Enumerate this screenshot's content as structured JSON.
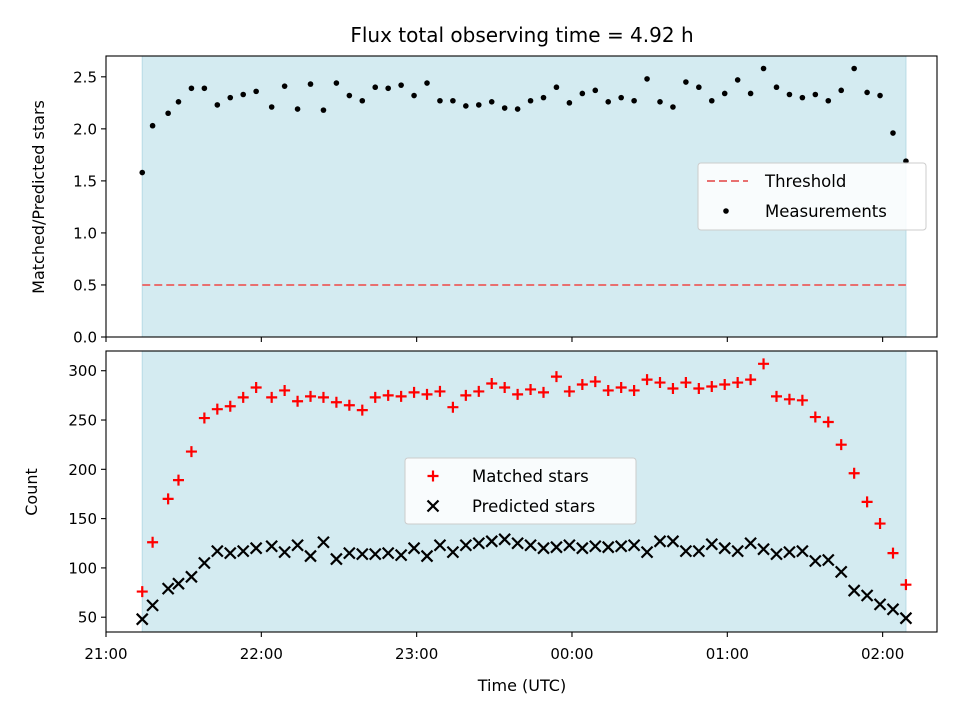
{
  "chart_data": [
    {
      "type": "scatter",
      "title": "Flux total observing time = 4.92 h",
      "xlabel": "",
      "ylabel": "Matched/Predicted stars",
      "xlim": [
        "21:00",
        "02:21"
      ],
      "ylim": [
        0,
        2.7
      ],
      "yticks": [
        "0.0",
        "0.5",
        "1.0",
        "1.5",
        "2.0",
        "2.5"
      ],
      "shaded_span": [
        "21:14",
        "02:09"
      ],
      "shade_color": "#d4ebf1",
      "threshold": {
        "name": "Threshold",
        "value": 0.5,
        "color": "#e87070"
      },
      "legend": {
        "location": "center-right",
        "entries": [
          "Threshold",
          "Measurements"
        ]
      },
      "series": [
        {
          "name": "Measurements",
          "marker": "dot",
          "color": "#000000",
          "points": [
            [
              "21:14",
              1.58
            ],
            [
              "21:18",
              2.03
            ],
            [
              "21:24",
              2.15
            ],
            [
              "21:28",
              2.26
            ],
            [
              "21:33",
              2.39
            ],
            [
              "21:38",
              2.39
            ],
            [
              "21:43",
              2.23
            ],
            [
              "21:48",
              2.3
            ],
            [
              "21:53",
              2.33
            ],
            [
              "21:58",
              2.36
            ],
            [
              "22:04",
              2.21
            ],
            [
              "22:09",
              2.41
            ],
            [
              "22:14",
              2.19
            ],
            [
              "22:19",
              2.43
            ],
            [
              "22:24",
              2.18
            ],
            [
              "22:29",
              2.44
            ],
            [
              "22:34",
              2.32
            ],
            [
              "22:39",
              2.27
            ],
            [
              "22:44",
              2.4
            ],
            [
              "22:49",
              2.39
            ],
            [
              "22:54",
              2.42
            ],
            [
              "22:59",
              2.32
            ],
            [
              "23:04",
              2.44
            ],
            [
              "23:09",
              2.27
            ],
            [
              "23:14",
              2.27
            ],
            [
              "23:19",
              2.22
            ],
            [
              "23:24",
              2.23
            ],
            [
              "23:29",
              2.26
            ],
            [
              "23:34",
              2.2
            ],
            [
              "23:39",
              2.19
            ],
            [
              "23:44",
              2.27
            ],
            [
              "23:49",
              2.3
            ],
            [
              "23:54",
              2.4
            ],
            [
              "23:59",
              2.25
            ],
            [
              "00:04",
              2.34
            ],
            [
              "00:09",
              2.37
            ],
            [
              "00:14",
              2.26
            ],
            [
              "00:19",
              2.3
            ],
            [
              "00:24",
              2.27
            ],
            [
              "00:29",
              2.48
            ],
            [
              "00:34",
              2.26
            ],
            [
              "00:39",
              2.21
            ],
            [
              "00:44",
              2.45
            ],
            [
              "00:49",
              2.4
            ],
            [
              "00:54",
              2.27
            ],
            [
              "00:59",
              2.34
            ],
            [
              "01:04",
              2.47
            ],
            [
              "01:09",
              2.34
            ],
            [
              "01:14",
              2.58
            ],
            [
              "01:19",
              2.4
            ],
            [
              "01:24",
              2.33
            ],
            [
              "01:29",
              2.3
            ],
            [
              "01:34",
              2.33
            ],
            [
              "01:39",
              2.27
            ],
            [
              "01:44",
              2.37
            ],
            [
              "01:49",
              2.58
            ],
            [
              "01:54",
              2.35
            ],
            [
              "01:59",
              2.32
            ],
            [
              "02:04",
              1.96
            ],
            [
              "02:09",
              1.69
            ]
          ]
        }
      ]
    },
    {
      "type": "scatter",
      "title": "",
      "xlabel": "Time (UTC)",
      "ylabel": "Count",
      "xlim": [
        "21:00",
        "02:21"
      ],
      "ylim": [
        35,
        320
      ],
      "yticks": [
        "50",
        "100",
        "150",
        "200",
        "250",
        "300"
      ],
      "xticks": [
        "21:00",
        "22:00",
        "23:00",
        "00:00",
        "01:00",
        "02:00"
      ],
      "shaded_span": [
        "21:14",
        "02:09"
      ],
      "shade_color": "#d4ebf1",
      "legend": {
        "location": "center",
        "entries": [
          "Matched stars",
          "Predicted stars"
        ]
      },
      "series": [
        {
          "name": "Matched stars",
          "marker": "plus",
          "color": "#ff0000",
          "points": [
            [
              "21:14",
              76
            ],
            [
              "21:18",
              126
            ],
            [
              "21:24",
              170
            ],
            [
              "21:28",
              189
            ],
            [
              "21:33",
              218
            ],
            [
              "21:38",
              252
            ],
            [
              "21:43",
              261
            ],
            [
              "21:48",
              264
            ],
            [
              "21:53",
              273
            ],
            [
              "21:58",
              283
            ],
            [
              "22:04",
              273
            ],
            [
              "22:09",
              280
            ],
            [
              "22:14",
              269
            ],
            [
              "22:19",
              274
            ],
            [
              "22:24",
              273
            ],
            [
              "22:29",
              268
            ],
            [
              "22:34",
              265
            ],
            [
              "22:39",
              260
            ],
            [
              "22:44",
              273
            ],
            [
              "22:49",
              275
            ],
            [
              "22:54",
              274
            ],
            [
              "22:59",
              278
            ],
            [
              "23:04",
              276
            ],
            [
              "23:09",
              279
            ],
            [
              "23:14",
              263
            ],
            [
              "23:19",
              275
            ],
            [
              "23:24",
              279
            ],
            [
              "23:29",
              287
            ],
            [
              "23:34",
              283
            ],
            [
              "23:39",
              276
            ],
            [
              "23:44",
              281
            ],
            [
              "23:49",
              278
            ],
            [
              "23:54",
              294
            ],
            [
              "23:59",
              279
            ],
            [
              "00:04",
              286
            ],
            [
              "00:09",
              289
            ],
            [
              "00:14",
              280
            ],
            [
              "00:19",
              283
            ],
            [
              "00:24",
              280
            ],
            [
              "00:29",
              291
            ],
            [
              "00:34",
              288
            ],
            [
              "00:39",
              282
            ],
            [
              "00:44",
              288
            ],
            [
              "00:49",
              282
            ],
            [
              "00:54",
              284
            ],
            [
              "00:59",
              286
            ],
            [
              "01:04",
              288
            ],
            [
              "01:09",
              291
            ],
            [
              "01:14",
              307
            ],
            [
              "01:19",
              274
            ],
            [
              "01:24",
              271
            ],
            [
              "01:29",
              270
            ],
            [
              "01:34",
              253
            ],
            [
              "01:39",
              248
            ],
            [
              "01:44",
              225
            ],
            [
              "01:49",
              196
            ],
            [
              "01:54",
              167
            ],
            [
              "01:59",
              145
            ],
            [
              "02:04",
              115
            ],
            [
              "02:09",
              83
            ]
          ]
        },
        {
          "name": "Predicted stars",
          "marker": "x",
          "color": "#000000",
          "points": [
            [
              "21:14",
              48
            ],
            [
              "21:18",
              62
            ],
            [
              "21:24",
              79
            ],
            [
              "21:28",
              84
            ],
            [
              "21:33",
              91
            ],
            [
              "21:38",
              105
            ],
            [
              "21:43",
              117
            ],
            [
              "21:48",
              115
            ],
            [
              "21:53",
              117
            ],
            [
              "21:58",
              120
            ],
            [
              "22:04",
              122
            ],
            [
              "22:09",
              116
            ],
            [
              "22:14",
              123
            ],
            [
              "22:19",
              112
            ],
            [
              "22:24",
              126
            ],
            [
              "22:29",
              109
            ],
            [
              "22:34",
              115
            ],
            [
              "22:39",
              114
            ],
            [
              "22:44",
              114
            ],
            [
              "22:49",
              115
            ],
            [
              "22:54",
              113
            ],
            [
              "22:59",
              120
            ],
            [
              "23:04",
              112
            ],
            [
              "23:09",
              123
            ],
            [
              "23:14",
              116
            ],
            [
              "23:19",
              123
            ],
            [
              "23:24",
              125
            ],
            [
              "23:29",
              127
            ],
            [
              "23:34",
              129
            ],
            [
              "23:39",
              125
            ],
            [
              "23:44",
              123
            ],
            [
              "23:49",
              120
            ],
            [
              "23:54",
              121
            ],
            [
              "23:59",
              123
            ],
            [
              "00:04",
              120
            ],
            [
              "00:09",
              122
            ],
            [
              "00:14",
              121
            ],
            [
              "00:19",
              122
            ],
            [
              "00:24",
              123
            ],
            [
              "00:29",
              116
            ],
            [
              "00:34",
              127
            ],
            [
              "00:39",
              127
            ],
            [
              "00:44",
              117
            ],
            [
              "00:49",
              117
            ],
            [
              "00:54",
              124
            ],
            [
              "00:59",
              120
            ],
            [
              "01:04",
              117
            ],
            [
              "01:09",
              125
            ],
            [
              "01:14",
              119
            ],
            [
              "01:19",
              114
            ],
            [
              "01:24",
              116
            ],
            [
              "01:29",
              117
            ],
            [
              "01:34",
              107
            ],
            [
              "01:39",
              108
            ],
            [
              "01:44",
              96
            ],
            [
              "01:49",
              77
            ],
            [
              "01:54",
              72
            ],
            [
              "01:59",
              63
            ],
            [
              "02:04",
              58
            ],
            [
              "02:09",
              49
            ]
          ]
        }
      ]
    }
  ]
}
